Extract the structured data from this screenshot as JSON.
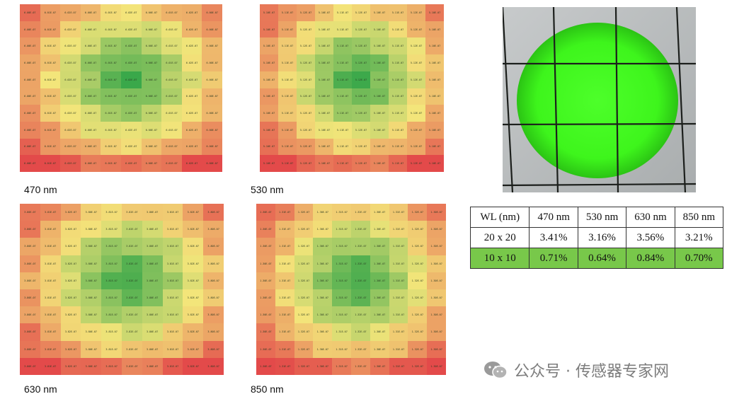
{
  "heatmaps": [
    {
      "caption": "470 nm",
      "base": "6.0",
      "exp": "E-07"
    },
    {
      "caption": "530 nm",
      "base": "5.1",
      "exp": "E-07"
    },
    {
      "caption": "630 nm",
      "base": "3.8",
      "exp": "E-07"
    },
    {
      "caption": "850 nm",
      "base": "1.3",
      "exp": "E-07"
    }
  ],
  "table": {
    "headers": [
      "WL (nm)",
      "470 nm",
      "530 nm",
      "630 nm",
      "850 nm"
    ],
    "rows": [
      {
        "cells": [
          "20 x 20",
          "3.41%",
          "3.16%",
          "3.56%",
          "3.21%"
        ],
        "highlight": false
      },
      {
        "cells": [
          "10 x 10",
          "0.71%",
          "0.64%",
          "0.84%",
          "0.70%"
        ],
        "highlight": true
      }
    ]
  },
  "watermark": "公众号 · 传感器专家网",
  "colors": {
    "heat_low": "#e34a4a",
    "heat_mid": "#f3e57a",
    "heat_high": "#3aa84a",
    "table_highlight": "#78c84a",
    "spot_green": "#3ef51c"
  },
  "chart_data": [
    {
      "type": "heatmap",
      "title": "470 nm",
      "rows": 10,
      "cols": 10,
      "cell_text": "unreadable (approx. 6.0E-07 … 6.1E-07)"
    },
    {
      "type": "heatmap",
      "title": "530 nm",
      "rows": 10,
      "cols": 10,
      "cell_text": "unreadable (approx. 4.9E-07 … 5.1E-07)"
    },
    {
      "type": "heatmap",
      "title": "630 nm",
      "rows": 10,
      "cols": 10,
      "cell_text": "unreadable (approx. 3.7E-07 … 3.9E-07)"
    },
    {
      "type": "heatmap",
      "title": "850 nm",
      "rows": 10,
      "cols": 10,
      "cell_text": "unreadable (approx. 1.2E-07 … 1.3E-07)"
    },
    {
      "type": "table",
      "columns": [
        "WL (nm)",
        "470 nm",
        "530 nm",
        "630 nm",
        "850 nm"
      ],
      "rows": [
        [
          "20 x 20",
          3.41,
          3.16,
          3.56,
          3.21
        ],
        [
          "10 x 10",
          0.71,
          0.64,
          0.84,
          0.7
        ]
      ]
    }
  ]
}
